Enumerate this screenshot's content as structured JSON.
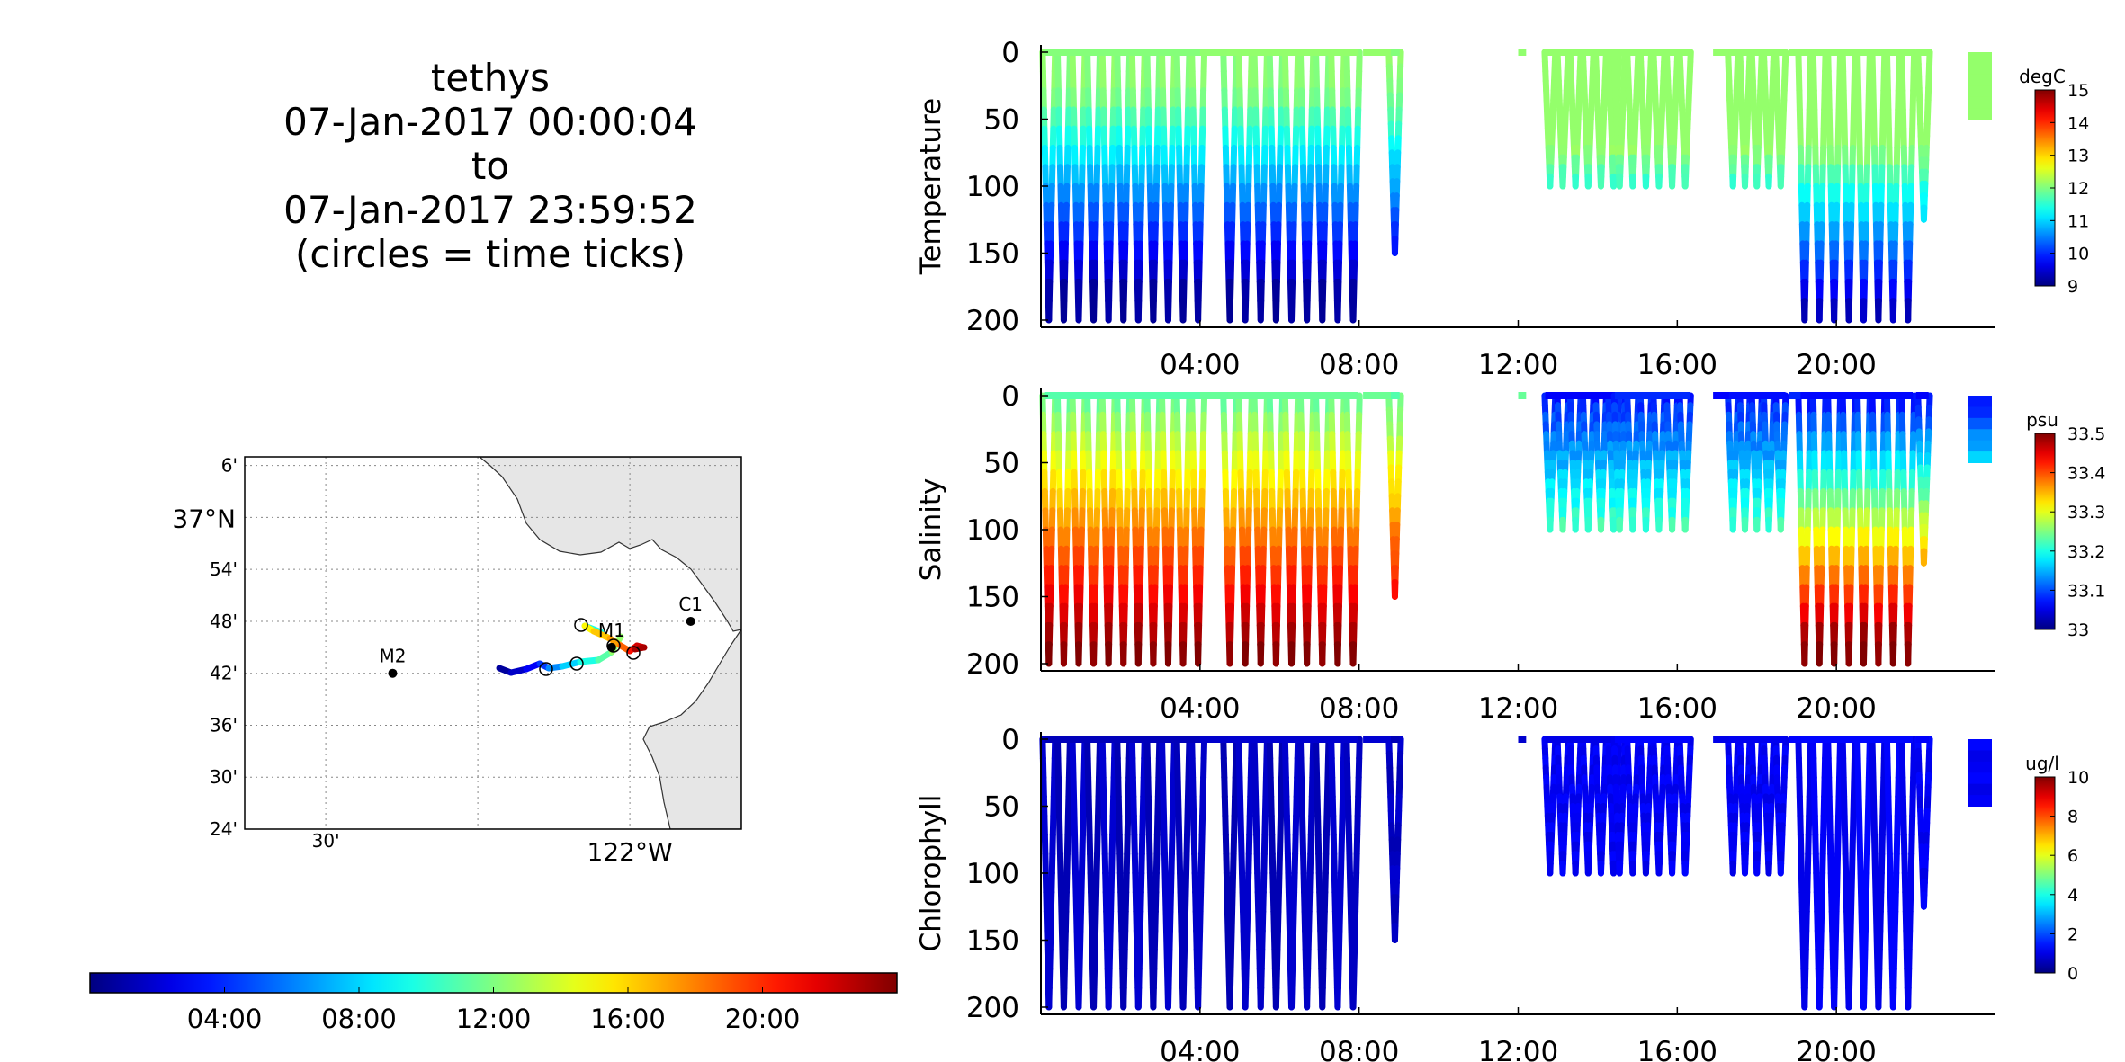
{
  "title": {
    "vehicle": "tethys",
    "start": "07-Jan-2017 00:00:04",
    "to_word": "to",
    "end": "07-Jan-2017 23:59:52",
    "note": "(circles = time ticks)"
  },
  "time_colorbar": {
    "tick_labels": [
      "04:00",
      "08:00",
      "12:00",
      "16:00",
      "20:00"
    ],
    "tick_hours": [
      4,
      8,
      12,
      16,
      20
    ],
    "range_hours": [
      0,
      24
    ]
  },
  "map": {
    "lat_ticks": [
      "6'",
      "37°N",
      "54'",
      "48'",
      "42'",
      "36'",
      "30'",
      "24'"
    ],
    "lon_ticks": [
      "30'",
      "122°W"
    ],
    "lat_range_deg": [
      36.4,
      37.1167
    ],
    "lon_range_deg": [
      -122.6333,
      -121.8167
    ],
    "stations": [
      {
        "name": "M2",
        "lon": -122.39,
        "lat": 36.7
      },
      {
        "name": "M1",
        "lon": -122.03,
        "lat": 36.75
      },
      {
        "name": "C1",
        "lon": -121.9,
        "lat": 36.8
      }
    ],
    "grid": true,
    "land_color": "#e6e6e6"
  },
  "chart_data": [
    {
      "type": "scatter",
      "title": "",
      "ylabel": "Temperature",
      "units": "degC",
      "ylim": [
        200,
        0
      ],
      "xlim_hours": [
        0,
        24
      ],
      "x_tick_labels": [
        "04:00",
        "08:00",
        "12:00",
        "16:00",
        "20:00"
      ],
      "x_tick_hours": [
        4,
        8,
        12,
        16,
        20
      ],
      "y_ticks": [
        0,
        50,
        100,
        150,
        200
      ],
      "color_range": [
        9,
        15
      ],
      "colorbar_ticks": [
        9,
        10,
        11,
        12,
        13,
        14,
        15
      ],
      "profiles": [
        {
          "start_h": 0.2,
          "end_h": 3.95,
          "n": 11,
          "max_depth": 200
        },
        {
          "start_h": 4.75,
          "end_h": 7.85,
          "n": 9,
          "max_depth": 200
        },
        {
          "start_h": 8.9,
          "end_h": 8.9,
          "n": 1,
          "max_depth": 150
        },
        {
          "start_h": 12.8,
          "end_h": 14.4,
          "n": 6,
          "max_depth": 100
        },
        {
          "start_h": 14.55,
          "end_h": 16.2,
          "n": 6,
          "max_depth": 100
        },
        {
          "start_h": 17.4,
          "end_h": 18.6,
          "n": 5,
          "max_depth": 100
        },
        {
          "start_h": 19.2,
          "end_h": 21.8,
          "n": 8,
          "max_depth": 200
        },
        {
          "start_h": 22.2,
          "end_h": 22.2,
          "n": 1,
          "max_depth": 125
        }
      ],
      "surface_segments": [
        [
          4.0,
          4.7
        ],
        [
          8.1,
          8.8
        ],
        [
          12.0,
          12.2
        ],
        [
          16.9,
          17.3
        ],
        [
          18.8,
          19.1
        ],
        [
          22.0,
          22.3
        ]
      ],
      "end_block": {
        "start_h": 23.3,
        "end_h": 24,
        "max_depth": 50
      }
    },
    {
      "type": "scatter",
      "title": "",
      "ylabel": "Salinity",
      "units": "psu",
      "ylim": [
        200,
        0
      ],
      "xlim_hours": [
        0,
        24
      ],
      "x_tick_labels": [
        "04:00",
        "08:00",
        "12:00",
        "16:00",
        "20:00"
      ],
      "x_tick_hours": [
        4,
        8,
        12,
        16,
        20
      ],
      "y_ticks": [
        0,
        50,
        100,
        150,
        200
      ],
      "color_range": [
        33,
        33.5
      ],
      "colorbar_ticks": [
        33,
        33.1,
        33.2,
        33.3,
        33.4,
        33.5
      ]
    },
    {
      "type": "scatter",
      "title": "",
      "ylabel": "Chlorophyll",
      "units": "ug/l",
      "ylim": [
        200,
        0
      ],
      "xlim_hours": [
        0,
        24
      ],
      "x_tick_labels": [
        "04:00",
        "08:00",
        "12:00",
        "16:00",
        "20:00"
      ],
      "x_tick_hours": [
        4,
        8,
        12,
        16,
        20
      ],
      "y_ticks": [
        0,
        50,
        100,
        150,
        200
      ],
      "color_range": [
        0,
        10
      ],
      "colorbar_ticks": [
        0,
        2,
        4,
        6,
        8,
        10
      ]
    }
  ]
}
